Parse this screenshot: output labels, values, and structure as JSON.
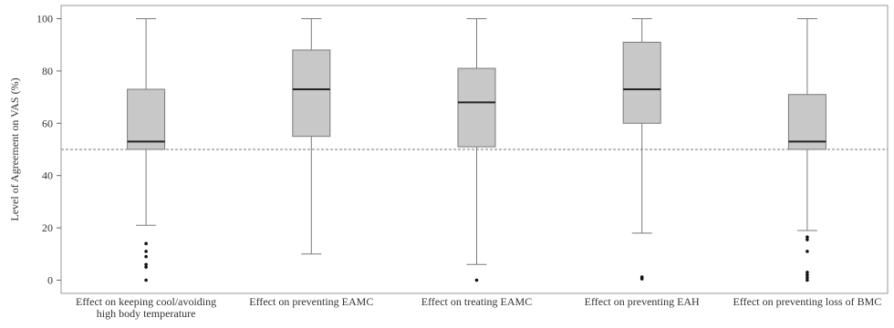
{
  "chart_data": {
    "type": "box",
    "title": "",
    "xlabel": "",
    "ylabel": "Level of Agreement on VAS (%)",
    "ylim": [
      -5,
      105
    ],
    "yticks": [
      0,
      20,
      40,
      60,
      80,
      100
    ],
    "reference_line": 50,
    "grid": false,
    "colors": {
      "box_fill": "#c8c8c8",
      "box_stroke": "#7a7a7a",
      "median": "#222222",
      "outlier": "#111111",
      "reference_line": "#777777"
    },
    "categories": [
      {
        "label_lines": [
          "Effect on keeping cool/avoiding",
          "high body temperature"
        ],
        "whisker_low": 21,
        "q1": 50,
        "median": 53,
        "q3": 73,
        "whisker_high": 100,
        "outliers": [
          0,
          5,
          6,
          9,
          11,
          14
        ]
      },
      {
        "label_lines": [
          "Effect on preventing EAMC"
        ],
        "whisker_low": 10,
        "q1": 55,
        "median": 73,
        "q3": 88,
        "whisker_high": 100,
        "outliers": []
      },
      {
        "label_lines": [
          "Effect on treating EAMC"
        ],
        "whisker_low": 6,
        "q1": 51,
        "median": 68,
        "q3": 81,
        "whisker_high": 100,
        "outliers": [
          0
        ]
      },
      {
        "label_lines": [
          "Effect on preventing EAH"
        ],
        "whisker_low": 18,
        "q1": 60,
        "median": 73,
        "q3": 91,
        "whisker_high": 100,
        "outliers": [
          0.5,
          1.2
        ]
      },
      {
        "label_lines": [
          "Effect on preventing loss of BMC"
        ],
        "whisker_low": 19,
        "q1": 50,
        "median": 53,
        "q3": 71,
        "whisker_high": 100,
        "outliers": [
          0,
          1,
          2,
          3,
          11,
          15.5,
          16.5
        ]
      }
    ]
  }
}
